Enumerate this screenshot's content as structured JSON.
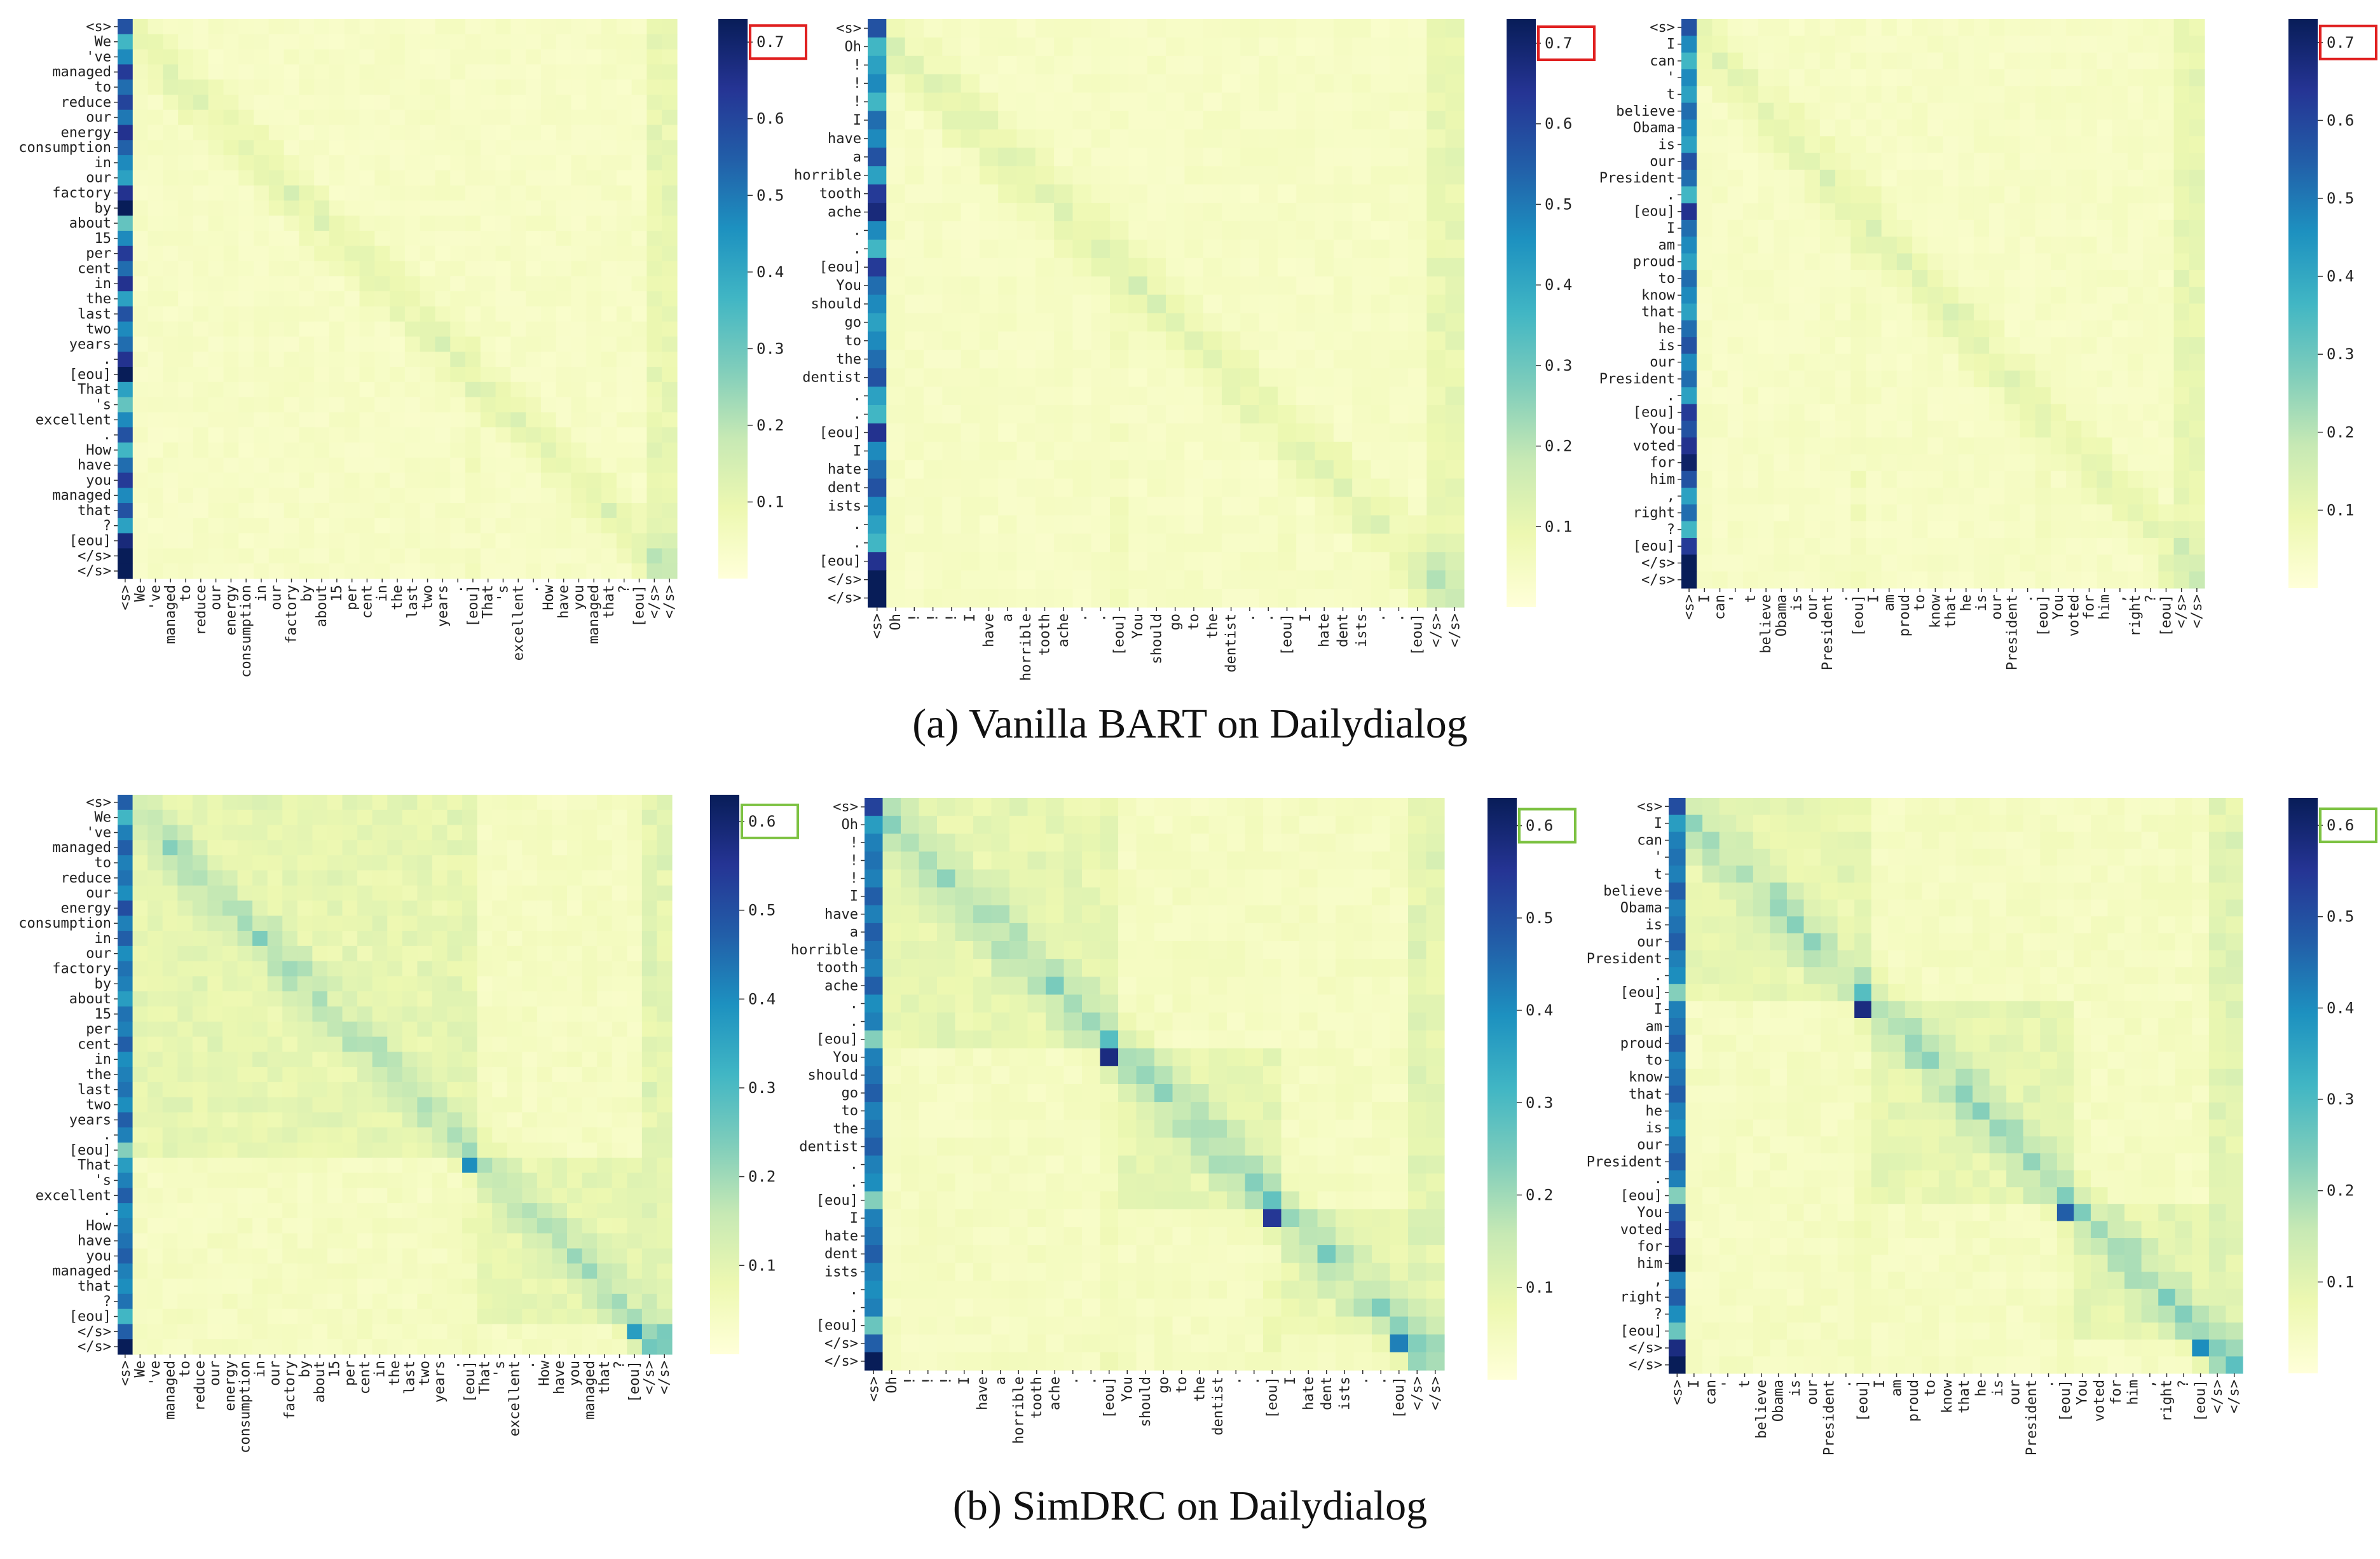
{
  "figure": {
    "captions": [
      "(a)  Vanilla BART on Dailydialog",
      "(b) SimDRC on Dailydialog"
    ]
  },
  "colors": {
    "cmap": [
      "#ffffd9",
      "#edf8b1",
      "#c7e9b4",
      "#7fcdbb",
      "#41b6c4",
      "#1d91c0",
      "#225ea8",
      "#253494",
      "#081d58"
    ],
    "highlight_bart": "#e02020",
    "highlight_simdrc": "#7dc242"
  },
  "chart_data": [
    {
      "type": "heatmap",
      "row": "a",
      "dialogue": 1,
      "tokens": [
        "<s>",
        "We",
        "'ve",
        "managed",
        "to",
        "reduce",
        "our",
        "energy",
        "consumption",
        "in",
        "our",
        "factory",
        "by",
        "about",
        "15",
        "per",
        "cent",
        "in",
        "the",
        "last",
        "two",
        "years",
        ".",
        "[eou]",
        "That",
        "'s",
        "excellent",
        ".",
        "How",
        "have",
        "you",
        "managed",
        "that",
        "?",
        "[eou]",
        "</s>",
        "</s>"
      ],
      "eou_indices": [
        23,
        34
      ],
      "colorbar": {
        "ticks": [
          0.1,
          0.2,
          0.3,
          0.4,
          0.5,
          0.6,
          0.7
        ],
        "max": 0.7,
        "highlighted_tick": "0.7"
      },
      "first_column_values": [
        0.55,
        0.35,
        0.45,
        0.6,
        0.5,
        0.58,
        0.48,
        0.62,
        0.52,
        0.45,
        0.4,
        0.62,
        0.7,
        0.3,
        0.45,
        0.6,
        0.5,
        0.62,
        0.4,
        0.55,
        0.45,
        0.5,
        0.62,
        0.7,
        0.4,
        0.3,
        0.45,
        0.55,
        0.35,
        0.5,
        0.6,
        0.45,
        0.55,
        0.4,
        0.65,
        0.75,
        0.8
      ],
      "diagonal_peak": 0.1,
      "background": 0.03
    },
    {
      "type": "heatmap",
      "row": "a",
      "dialogue": 2,
      "tokens": [
        "<s>",
        "Oh",
        "!",
        "!",
        "!",
        "I",
        "have",
        "a",
        "horrible",
        "tooth",
        "ache",
        ".",
        ".",
        "[eou]",
        "You",
        "should",
        "go",
        "to",
        "the",
        "dentist",
        ".",
        ".",
        "[eou]",
        "I",
        "hate",
        "dent",
        "ists",
        ".",
        ".",
        "[eou]",
        "</s>",
        "</s>"
      ],
      "eou_indices": [
        13,
        22,
        29
      ],
      "colorbar": {
        "ticks": [
          0.1,
          0.2,
          0.3,
          0.4,
          0.5,
          0.6,
          0.7
        ],
        "max": 0.7,
        "highlighted_tick": "0.7"
      },
      "first_column_values": [
        0.55,
        0.35,
        0.4,
        0.45,
        0.35,
        0.5,
        0.45,
        0.55,
        0.4,
        0.6,
        0.65,
        0.45,
        0.35,
        0.6,
        0.5,
        0.45,
        0.4,
        0.45,
        0.5,
        0.55,
        0.4,
        0.35,
        0.62,
        0.45,
        0.5,
        0.55,
        0.45,
        0.4,
        0.35,
        0.62,
        0.75,
        0.82
      ],
      "diagonal_peak": 0.1,
      "background": 0.03
    },
    {
      "type": "heatmap",
      "row": "a",
      "dialogue": 3,
      "tokens": [
        "<s>",
        "I",
        "can",
        "'",
        "t",
        "believe",
        "Obama",
        "is",
        "our",
        "President",
        ".",
        "[eou]",
        "I",
        "am",
        "proud",
        "to",
        "know",
        "that",
        "he",
        "is",
        "our",
        "President",
        ".",
        "[eou]",
        "You",
        "voted",
        "for",
        "him",
        ",",
        "right",
        "?",
        "[eou]",
        "</s>",
        "</s>"
      ],
      "eou_indices": [
        11,
        23,
        31
      ],
      "colorbar": {
        "ticks": [
          0.1,
          0.2,
          0.3,
          0.4,
          0.5,
          0.6,
          0.7
        ],
        "max": 0.7,
        "highlighted_tick": "0.7"
      },
      "first_column_values": [
        0.55,
        0.45,
        0.35,
        0.45,
        0.4,
        0.5,
        0.45,
        0.4,
        0.55,
        0.5,
        0.35,
        0.62,
        0.5,
        0.45,
        0.4,
        0.5,
        0.45,
        0.4,
        0.5,
        0.55,
        0.45,
        0.5,
        0.4,
        0.6,
        0.55,
        0.62,
        0.68,
        0.55,
        0.4,
        0.5,
        0.35,
        0.6,
        0.72,
        0.8
      ],
      "diagonal_peak": 0.1,
      "background": 0.03
    },
    {
      "type": "heatmap",
      "row": "b",
      "dialogue": 1,
      "tokens": [
        "<s>",
        "We",
        "'ve",
        "managed",
        "to",
        "reduce",
        "our",
        "energy",
        "consumption",
        "in",
        "our",
        "factory",
        "by",
        "about",
        "15",
        "per",
        "cent",
        "in",
        "the",
        "last",
        "two",
        "years",
        ".",
        "[eou]",
        "That",
        "'s",
        "excellent",
        ".",
        "How",
        "have",
        "you",
        "managed",
        "that",
        "?",
        "[eou]",
        "</s>",
        "</s>"
      ],
      "eou_indices": [
        23,
        34
      ],
      "colorbar": {
        "ticks": [
          0.1,
          0.2,
          0.3,
          0.4,
          0.5,
          0.6
        ],
        "max": 0.6,
        "highlighted_tick": "0.6"
      },
      "first_column_values": [
        0.45,
        0.3,
        0.4,
        0.45,
        0.4,
        0.42,
        0.38,
        0.48,
        0.4,
        0.45,
        0.38,
        0.42,
        0.4,
        0.35,
        0.42,
        0.4,
        0.45,
        0.38,
        0.4,
        0.42,
        0.38,
        0.45,
        0.4,
        0.22,
        0.35,
        0.4,
        0.45,
        0.38,
        0.4,
        0.42,
        0.45,
        0.4,
        0.38,
        0.42,
        0.3,
        0.45,
        0.65
      ],
      "eou_peaks": [
        0.38,
        0.35
      ],
      "diagonal_peak": 0.12,
      "background": 0.03
    },
    {
      "type": "heatmap",
      "row": "b",
      "dialogue": 2,
      "tokens": [
        "<s>",
        "Oh",
        "!",
        "!",
        "!",
        "I",
        "have",
        "a",
        "horrible",
        "tooth",
        "ache",
        ".",
        ".",
        "[eou]",
        "You",
        "should",
        "go",
        "to",
        "the",
        "dentist",
        ".",
        ".",
        "[eou]",
        "I",
        "hate",
        "dent",
        "ists",
        ".",
        ".",
        "[eou]",
        "</s>",
        "</s>"
      ],
      "eou_indices": [
        13,
        22,
        29
      ],
      "colorbar": {
        "ticks": [
          0.1,
          0.2,
          0.3,
          0.4,
          0.5,
          0.6
        ],
        "max": 0.6,
        "highlighted_tick": "0.6"
      },
      "first_column_values": [
        0.5,
        0.35,
        0.4,
        0.42,
        0.4,
        0.45,
        0.4,
        0.45,
        0.42,
        0.4,
        0.45,
        0.38,
        0.4,
        0.22,
        0.4,
        0.42,
        0.45,
        0.4,
        0.42,
        0.45,
        0.4,
        0.38,
        0.22,
        0.4,
        0.42,
        0.45,
        0.4,
        0.38,
        0.4,
        0.25,
        0.45,
        0.65
      ],
      "eou_peaks": [
        0.55,
        0.52,
        0.4
      ],
      "diagonal_peak": 0.14,
      "background": 0.03
    },
    {
      "type": "heatmap",
      "row": "b",
      "dialogue": 3,
      "tokens": [
        "<s>",
        "I",
        "can",
        "'",
        "t",
        "believe",
        "Obama",
        "is",
        "our",
        "President",
        ".",
        "[eou]",
        "I",
        "am",
        "proud",
        "to",
        "know",
        "that",
        "he",
        "is",
        "our",
        "President",
        ".",
        "[eou]",
        "You",
        "voted",
        "for",
        "him",
        ",",
        "right",
        "?",
        "[eou]",
        "</s>",
        "</s>"
      ],
      "eou_indices": [
        11,
        23,
        31
      ],
      "colorbar": {
        "ticks": [
          0.1,
          0.2,
          0.3,
          0.4,
          0.5,
          0.6
        ],
        "max": 0.6,
        "highlighted_tick": "0.6"
      },
      "first_column_values": [
        0.48,
        0.35,
        0.4,
        0.42,
        0.4,
        0.45,
        0.4,
        0.42,
        0.45,
        0.4,
        0.38,
        0.22,
        0.4,
        0.42,
        0.45,
        0.4,
        0.42,
        0.45,
        0.4,
        0.38,
        0.42,
        0.45,
        0.4,
        0.22,
        0.45,
        0.5,
        0.55,
        0.6,
        0.4,
        0.45,
        0.38,
        0.25,
        0.55,
        0.65
      ],
      "eou_peaks": [
        0.55,
        0.45,
        0.38
      ],
      "diagonal_peak": 0.14,
      "background": 0.03
    }
  ]
}
